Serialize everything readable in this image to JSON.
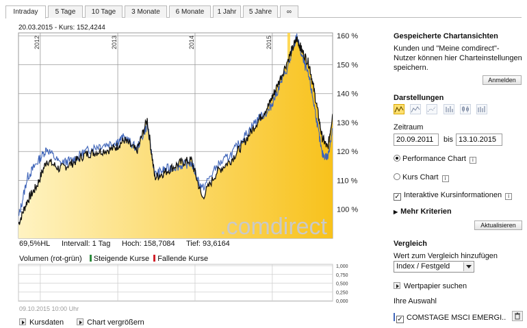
{
  "tabs": [
    {
      "label": "Intraday",
      "active": true
    },
    {
      "label": "5 Tage"
    },
    {
      "label": "10 Tage"
    },
    {
      "label": "3 Monate"
    },
    {
      "label": "6 Monate"
    },
    {
      "label": "1 Jahr"
    },
    {
      "label": "5 Jahre"
    },
    {
      "label": "∞"
    }
  ],
  "chart_header": "20.03.2015  -  Kurs: 152,4244",
  "watermark": ".comdirect",
  "stats": {
    "hl": "69,5%HL",
    "interval": "Intervall: 1 Tag",
    "high": "Hoch: 158,7084",
    "low": "Tief: 93,6164"
  },
  "volume": {
    "label": "Volumen (rot-grün)",
    "rising": "Steigende Kurse",
    "falling": "Fallende Kurse",
    "timestamp": "09.10.2015 10:00 Uhr"
  },
  "bottom_links": {
    "kursdaten": "Kursdaten",
    "enlarge": "Chart vergrößern"
  },
  "sidebar": {
    "saved_title": "Gespeicherte Chartansichten",
    "saved_text_1": "Kunden und \"Meine comdirect\"-",
    "saved_text_2": "Nutzer können hier Charteinstellungen",
    "saved_text_3": "speichern.",
    "login_button": "Anmelden",
    "darstellungen_title": "Darstellungen",
    "zeitraum_label": "Zeitraum",
    "date_from": "20.09.2011",
    "date_sep": "bis",
    "date_to": "13.10.2015",
    "opt_performance": "Performance Chart",
    "opt_kurs": "Kurs Chart",
    "opt_interactive": "Interaktive Kursinformationen",
    "more_criteria": "Mehr Kriterien",
    "update_button": "Aktualisieren",
    "vergleich_title": "Vergleich",
    "vergleich_text": "Wert zum Vergleich hinzufügen",
    "vergleich_select": "Index / Festgeld",
    "search_link": "Wertpapier suchen",
    "selection_label": "Ihre Auswahl",
    "selection_item": "COMSTAGE MSCI EMERGI.."
  },
  "colors": {
    "area_top": "#f8c21c",
    "area_bottom": "#fff3c2",
    "main_line": "#111111",
    "compare_line": "#3d63b8",
    "highlight": "#ffd23a",
    "rising": "#2e8b3d",
    "falling": "#d0202a",
    "watermark": "#c9c9c9"
  },
  "chart_data": {
    "type": "area",
    "x_ticks": [
      "2012",
      "2013",
      "2014",
      "2015"
    ],
    "y_ticks": [
      "160 %",
      "150 %",
      "140 %",
      "130 %",
      "120 %",
      "110 %",
      "100 %"
    ],
    "y_tick_values": [
      160,
      150,
      140,
      130,
      120,
      110,
      100
    ],
    "ylim": [
      90,
      161
    ],
    "volume_ticks": [
      "1,000",
      "0,750",
      "0,500",
      "0,250",
      "0,000"
    ],
    "highlight_date": "20.03.2015",
    "series": [
      {
        "x": [
          "2011-09-20",
          "2011-11-01",
          "2011-12-15",
          "2012-02-01",
          "2012-04-01",
          "2012-06-01",
          "2012-08-01",
          "2012-10-01",
          "2012-12-15",
          "2013-02-01",
          "2013-04-01",
          "2013-05-20",
          "2013-06-25",
          "2013-08-15",
          "2013-10-20",
          "2013-12-15",
          "2014-02-04",
          "2014-04-15",
          "2014-06-20",
          "2014-08-20",
          "2014-10-20",
          "2014-12-15",
          "2015-01-20",
          "2015-03-20",
          "2015-04-27",
          "2015-05-20",
          "2015-06-25",
          "2015-07-25",
          "2015-08-24",
          "2015-09-20",
          "2015-10-13"
        ],
        "values": [
          95,
          103,
          108,
          117,
          114,
          116,
          119,
          120,
          121,
          124,
          120,
          131,
          111,
          113,
          116,
          117,
          104,
          113,
          117,
          123,
          130,
          136,
          142,
          152.4,
          159,
          155,
          150,
          138,
          125,
          121,
          133
        ]
      },
      {
        "x": [
          "2011-09-20",
          "2011-11-01",
          "2011-12-15",
          "2012-02-01",
          "2012-04-01",
          "2012-06-01",
          "2012-08-01",
          "2012-10-01",
          "2012-12-15",
          "2013-02-01",
          "2013-04-01",
          "2013-05-20",
          "2013-06-25",
          "2013-08-15",
          "2013-10-20",
          "2013-12-15",
          "2014-02-04",
          "2014-04-15",
          "2014-06-20",
          "2014-08-20",
          "2014-10-20",
          "2014-12-15",
          "2015-01-20",
          "2015-03-20",
          "2015-04-27",
          "2015-05-20",
          "2015-06-25",
          "2015-07-25",
          "2015-08-24",
          "2015-09-20",
          "2015-10-13"
        ],
        "values": [
          97,
          111,
          116,
          121,
          116,
          117,
          120,
          122,
          123,
          125,
          121,
          129,
          112,
          114,
          115,
          116,
          107,
          115,
          119,
          125,
          131,
          134,
          140,
          150,
          160,
          153,
          145,
          133,
          119,
          118,
          128
        ]
      }
    ]
  }
}
